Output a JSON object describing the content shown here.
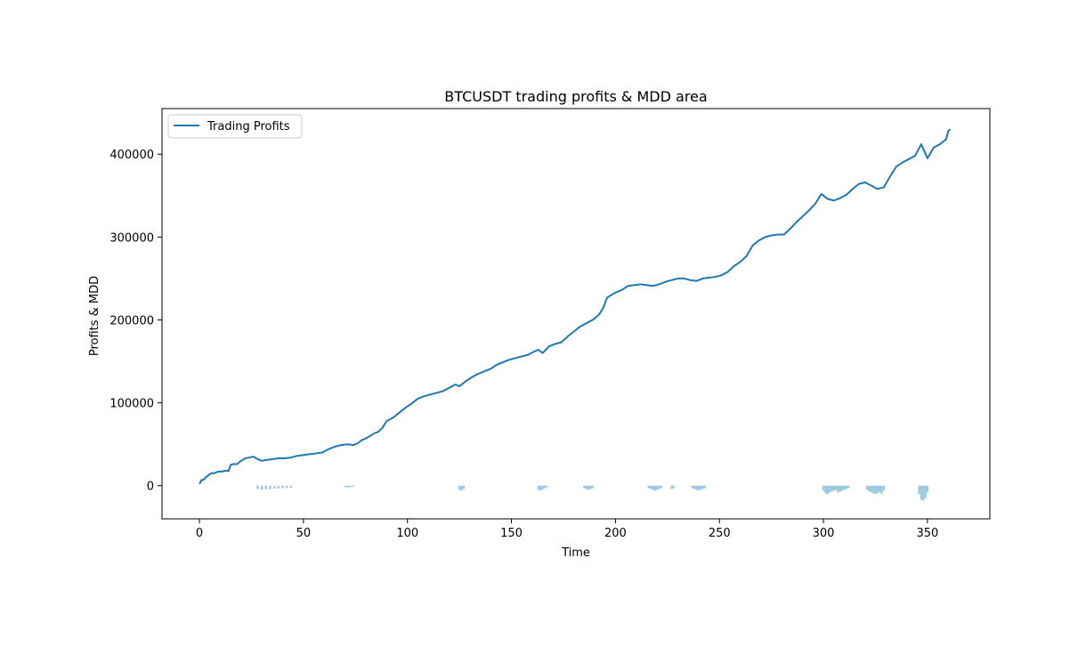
{
  "chart_data": {
    "type": "line",
    "title": "BTCUSDT trading profits & MDD area",
    "xlabel": "Time",
    "ylabel": "Profits & MDD",
    "xlim": [
      -18,
      380
    ],
    "ylim": [
      -40000,
      455000
    ],
    "xticks": [
      0,
      50,
      100,
      150,
      200,
      250,
      300,
      350
    ],
    "xtick_labels": [
      "0",
      "50",
      "100",
      "150",
      "200",
      "250",
      "300",
      "350"
    ],
    "yticks": [
      0,
      100000,
      200000,
      300000,
      400000
    ],
    "ytick_labels": [
      "0",
      "100000",
      "200000",
      "300000",
      "400000"
    ],
    "grid": false,
    "legend_position": "top-left",
    "colors": {
      "profits": "#1f77b4",
      "mdd": "#9ecae1",
      "axes": "#000000"
    },
    "series": [
      {
        "name": "Trading Profits",
        "kind": "line",
        "x": [
          0,
          1,
          2,
          3,
          4,
          5,
          6,
          7,
          8,
          9,
          10,
          11,
          12,
          13,
          14,
          15,
          16,
          18,
          20,
          22,
          24,
          26,
          28,
          30,
          32,
          35,
          38,
          41,
          44,
          47,
          50,
          53,
          56,
          59,
          62,
          65,
          68,
          71,
          74,
          76,
          78,
          80,
          82,
          84,
          86,
          88,
          90,
          93,
          96,
          99,
          102,
          105,
          108,
          111,
          114,
          117,
          120,
          123,
          125,
          128,
          131,
          134,
          137,
          140,
          143,
          146,
          149,
          152,
          155,
          158,
          161,
          163,
          165,
          168,
          171,
          174,
          177,
          180,
          183,
          186,
          189,
          192,
          194,
          196,
          198,
          200,
          203,
          206,
          209,
          212,
          215,
          218,
          221,
          224,
          227,
          230,
          233,
          236,
          239,
          242,
          245,
          248,
          251,
          254,
          257,
          260,
          263,
          266,
          269,
          272,
          275,
          278,
          281,
          284,
          287,
          290,
          293,
          296,
          299,
          302,
          305,
          308,
          311,
          314,
          317,
          320,
          323,
          326,
          329,
          332,
          335,
          338,
          341,
          344,
          347,
          350,
          353,
          356,
          359,
          360,
          361
        ],
        "y": [
          2000,
          7000,
          7000,
          10000,
          12000,
          14000,
          15000,
          15000,
          16000,
          17000,
          17000,
          17000,
          18000,
          18000,
          18000,
          25000,
          26000,
          26000,
          30000,
          33000,
          34000,
          35000,
          32000,
          30000,
          31000,
          32000,
          33000,
          33000,
          34000,
          36000,
          37000,
          38000,
          39000,
          40000,
          44000,
          47000,
          49000,
          50000,
          49000,
          51000,
          55000,
          57000,
          60000,
          63000,
          65000,
          70000,
          78000,
          82000,
          88000,
          94000,
          99000,
          105000,
          108000,
          110000,
          112000,
          114000,
          118000,
          122000,
          120000,
          126000,
          131000,
          135000,
          138000,
          141000,
          146000,
          149000,
          152000,
          154000,
          156000,
          158000,
          162000,
          164000,
          160000,
          168000,
          171000,
          173000,
          180000,
          186000,
          192000,
          196000,
          200000,
          206000,
          214000,
          227000,
          230000,
          233000,
          236000,
          241000,
          242000,
          243000,
          242000,
          241000,
          243000,
          246000,
          248000,
          250000,
          250000,
          248000,
          247000,
          250000,
          251000,
          252000,
          254000,
          258000,
          265000,
          270000,
          277000,
          290000,
          296000,
          300000,
          302000,
          303000,
          303000,
          310000,
          318000,
          325000,
          332000,
          340000,
          352000,
          346000,
          344000,
          347000,
          351000,
          358000,
          364000,
          366000,
          362000,
          358000,
          360000,
          373000,
          385000,
          390000,
          394000,
          398000,
          412000,
          395000,
          408000,
          412000,
          418000,
          428000,
          430000
        ]
      },
      {
        "name": "MDD",
        "kind": "area",
        "x": [
          28,
          30,
          32,
          34,
          36,
          38,
          40,
          42,
          44,
          70,
          71,
          72,
          73,
          74,
          125,
          126,
          127,
          163,
          164,
          165,
          166,
          167,
          185,
          186,
          187,
          188,
          189,
          216,
          217,
          218,
          219,
          220,
          221,
          222,
          227,
          228,
          237,
          238,
          239,
          240,
          241,
          242,
          243,
          300,
          301,
          302,
          303,
          304,
          305,
          306,
          307,
          308,
          309,
          310,
          311,
          312,
          321,
          322,
          323,
          324,
          325,
          326,
          327,
          328,
          329,
          346,
          347,
          348,
          349,
          350
        ],
        "y": [
          -4000,
          -5000,
          -4500,
          -4000,
          -3500,
          -3500,
          -3000,
          -3000,
          -2500,
          -1500,
          -2000,
          -2000,
          -1500,
          -1000,
          -5000,
          -6000,
          -4000,
          -5000,
          -6000,
          -4500,
          -3000,
          -2000,
          -3000,
          -4000,
          -5000,
          -4000,
          -3000,
          -3000,
          -4000,
          -5000,
          -6000,
          -5000,
          -4000,
          -3000,
          -4000,
          -3000,
          -3000,
          -4000,
          -5000,
          -6000,
          -5000,
          -4000,
          -3000,
          -6000,
          -9000,
          -10000,
          -8000,
          -7000,
          -6000,
          -5000,
          -8000,
          -7000,
          -6000,
          -5000,
          -4000,
          -3000,
          -5000,
          -7000,
          -8000,
          -9000,
          -10000,
          -9000,
          -8000,
          -10000,
          -6000,
          -10000,
          -17000,
          -18000,
          -15000,
          -8000
        ]
      }
    ]
  }
}
